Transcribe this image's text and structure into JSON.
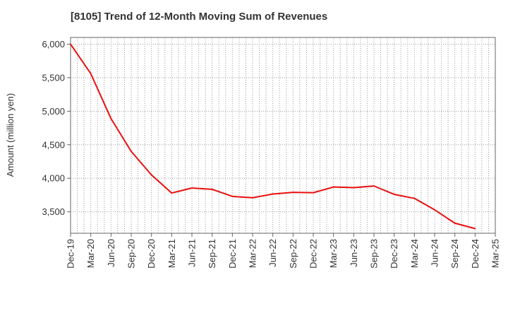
{
  "chart_data": {
    "type": "line",
    "title": "[8105]  Trend of 12-Month Moving Sum of Revenues",
    "xlabel": "",
    "ylabel": "Amount (million yen)",
    "xlim": [
      "Dec-19",
      "Mar-25"
    ],
    "ylim": [
      3180,
      6100
    ],
    "yticks": [
      3500,
      4000,
      4500,
      5000,
      5500,
      6000
    ],
    "ytick_labels": [
      "3,500",
      "4,000",
      "4,500",
      "5,000",
      "5,500",
      "6,000"
    ],
    "xtick_labels": [
      "Dec-19",
      "Mar-20",
      "Jun-20",
      "Sep-20",
      "Dec-20",
      "Mar-21",
      "Jun-21",
      "Sep-21",
      "Dec-21",
      "Mar-22",
      "Jun-22",
      "Sep-22",
      "Dec-22",
      "Mar-23",
      "Jun-23",
      "Sep-23",
      "Dec-23",
      "Mar-24",
      "Jun-24",
      "Sep-24",
      "Dec-24",
      "Mar-25"
    ],
    "grid": true,
    "legend": "none",
    "series": [
      {
        "color": "#e8100f",
        "x": [
          "Dec-19",
          "Mar-20",
          "Jun-20",
          "Sep-20",
          "Dec-20",
          "Mar-21",
          "Jun-21",
          "Sep-21",
          "Dec-21",
          "Mar-22",
          "Jun-22",
          "Sep-22",
          "Dec-22",
          "Mar-23",
          "Jun-23",
          "Sep-23",
          "Dec-23",
          "Mar-24",
          "Jun-24",
          "Sep-24",
          "Dec-24"
        ],
        "values": [
          6000,
          5560,
          4890,
          4400,
          4050,
          3780,
          3855,
          3835,
          3730,
          3710,
          3765,
          3790,
          3785,
          3870,
          3860,
          3885,
          3760,
          3700,
          3530,
          3330,
          3250
        ]
      }
    ]
  }
}
